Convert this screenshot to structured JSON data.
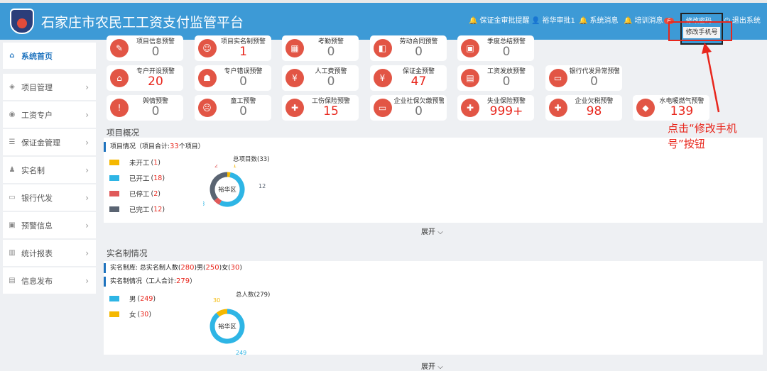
{
  "header": {
    "title": "石家庄市农民工工资支付监管平台",
    "nav": [
      {
        "label": "保证金审批提醒",
        "icon": "bell-icon"
      },
      {
        "label": "裕华审批1",
        "icon": "user-icon"
      },
      {
        "label": "系统消息",
        "icon": "bell-icon"
      },
      {
        "label": "培训消息",
        "icon": "bell-icon",
        "badge": "6"
      },
      {
        "label": "退出系统",
        "icon": "power-icon"
      }
    ],
    "dropdown": {
      "item1": "修改密码",
      "item2": "修改手机号"
    }
  },
  "annotation": {
    "line1": "点击“修改手机",
    "line2": "号”按钮"
  },
  "sidebar": {
    "items": [
      {
        "label": "系统首页",
        "icon": "home-icon"
      },
      {
        "label": "项目管理",
        "icon": "layers-icon"
      },
      {
        "label": "工资专户",
        "icon": "coin-icon"
      },
      {
        "label": "保证金管理",
        "icon": "list-icon"
      },
      {
        "label": "实名制",
        "icon": "person-icon"
      },
      {
        "label": "银行代发",
        "icon": "card-icon"
      },
      {
        "label": "预警信息",
        "icon": "lock-icon"
      },
      {
        "label": "统计报表",
        "icon": "bar-chart-icon"
      },
      {
        "label": "信息发布",
        "icon": "doc-icon"
      }
    ]
  },
  "cards": {
    "row1": [
      {
        "label": "项目信息预警",
        "value": "0"
      },
      {
        "label": "项目实名制预警",
        "value": "1"
      },
      {
        "label": "考勤预警",
        "value": "0"
      },
      {
        "label": "劳动合同预警",
        "value": "0"
      },
      {
        "label": "季度总结预警",
        "value": "0"
      }
    ],
    "row2": [
      {
        "label": "专户开设预警",
        "value": "20"
      },
      {
        "label": "专户错误预警",
        "value": "0"
      },
      {
        "label": "人工费预警",
        "value": "0"
      },
      {
        "label": "保证金预警",
        "value": "47"
      },
      {
        "label": "工资发放预警",
        "value": "0"
      },
      {
        "label": "银行代发异常预警",
        "value": "0"
      }
    ],
    "row3": [
      {
        "label": "舆情预警",
        "value": "0"
      },
      {
        "label": "童工预警",
        "value": "0"
      },
      {
        "label": "工伤保险预警",
        "value": "15"
      },
      {
        "label": "企业社保欠缴预警",
        "value": "0"
      },
      {
        "label": "失业保险预警",
        "value": "999+"
      },
      {
        "label": "企业欠税预警",
        "value": "98"
      },
      {
        "label": "水电暖燃气预警",
        "value": "139"
      }
    ]
  },
  "project_overview": {
    "title": "项目概况",
    "subhead_prefix": "项目情况（项目合计:",
    "total": "33",
    "subhead_suffix": "个项目）",
    "legend": [
      {
        "label": "未开工",
        "count": "1",
        "color": "#f5b800"
      },
      {
        "label": "已开工",
        "count": "18",
        "color": "#2eb5e5"
      },
      {
        "label": "已停工",
        "count": "2",
        "color": "#e05a5a"
      },
      {
        "label": "已完工",
        "count": "12",
        "color": "#5a6472"
      }
    ],
    "donut_caption": "总项目数(33)",
    "donut_center": "裕华区",
    "expand": "展开"
  },
  "realname": {
    "title": "实名制情况",
    "line1_prefix": "实名制库: 总实名制人数(",
    "line1_total": "280",
    "line1_male_label": ")男(",
    "line1_male": "250",
    "line1_female_label": ")女(",
    "line1_female": "30",
    "line1_end": ")",
    "line2_prefix": "实名制情况（工人合计:",
    "line2_total": "279",
    "line2_end": "）",
    "legend": [
      {
        "label": "男",
        "count": "249",
        "color": "#2eb5e5"
      },
      {
        "label": "女",
        "count": "30",
        "color": "#f5b800"
      }
    ],
    "donut_caption": "总人数(279)",
    "donut_center": "裕华区",
    "expand": "展开"
  },
  "chart_data": [
    {
      "type": "pie",
      "title": "总项目数(33)",
      "categories": [
        "未开工",
        "已开工",
        "已停工",
        "已完工"
      ],
      "values": [
        1,
        18,
        2,
        12
      ]
    },
    {
      "type": "pie",
      "title": "总人数(279)",
      "categories": [
        "男",
        "女"
      ],
      "values": [
        249,
        30
      ]
    }
  ]
}
